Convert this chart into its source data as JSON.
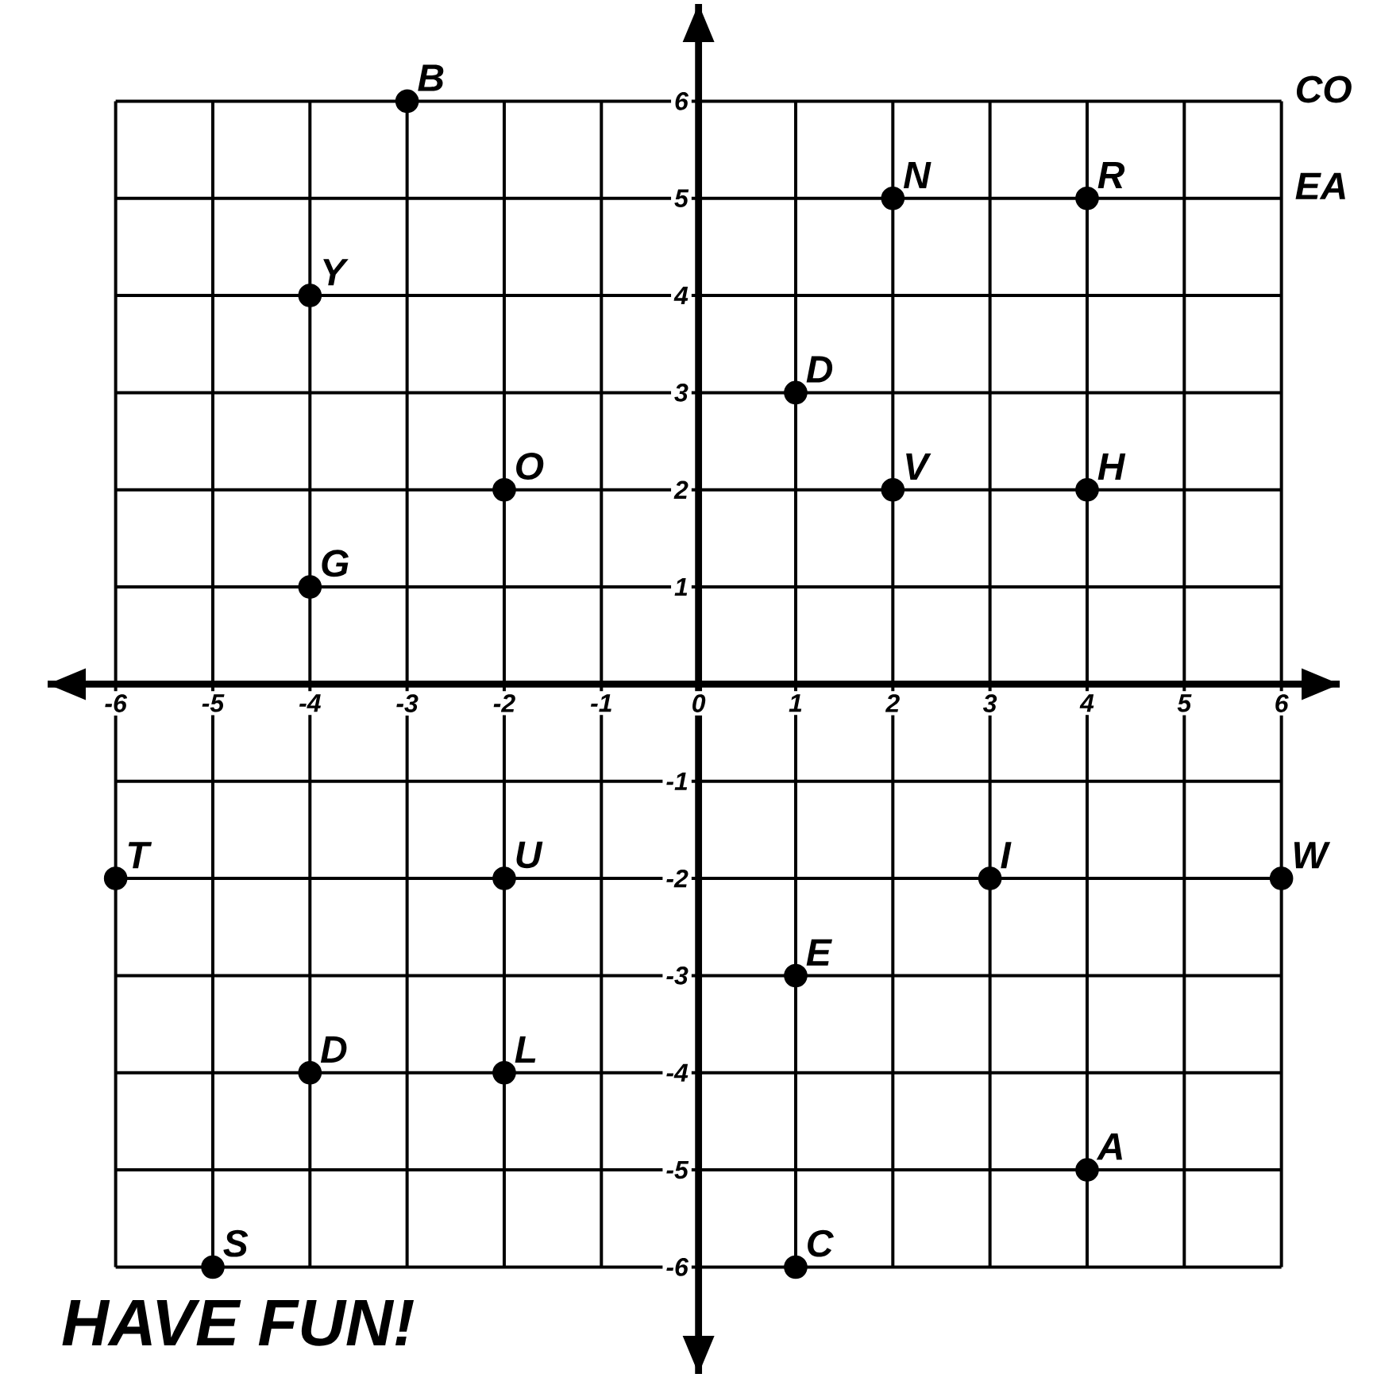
{
  "chart_data": {
    "type": "scatter",
    "series": [
      {
        "color": "#000000",
        "x": [
          -3,
          2,
          4,
          -4,
          1,
          -2,
          2,
          4,
          -4,
          -6,
          -2,
          3,
          6,
          1,
          -4,
          -2,
          4,
          -5,
          1
        ],
        "values": [
          6,
          5,
          5,
          4,
          3,
          2,
          2,
          2,
          1,
          -2,
          -2,
          -2,
          -2,
          -3,
          -4,
          -4,
          -5,
          -6,
          -6
        ]
      }
    ],
    "marker": "circle",
    "grid": true,
    "xlim": [
      -6.7,
      6.6
    ],
    "ylim": [
      -7.1,
      7
    ],
    "xticks": [
      -6,
      -5,
      -4,
      -3,
      -2,
      -1,
      0,
      1,
      2,
      3,
      4,
      5,
      6
    ],
    "yticks": [
      -6,
      -5,
      -4,
      -3,
      -2,
      -1,
      1,
      2,
      3,
      4,
      5,
      6
    ],
    "annotations": [
      {
        "text": "B",
        "x": -3,
        "y": 6
      },
      {
        "text": "N",
        "x": 2,
        "y": 5
      },
      {
        "text": "R",
        "x": 4,
        "y": 5
      },
      {
        "text": "Y",
        "x": -4,
        "y": 4
      },
      {
        "text": "D",
        "x": 1,
        "y": 3
      },
      {
        "text": "O",
        "x": -2,
        "y": 2
      },
      {
        "text": "V",
        "x": 2,
        "y": 2
      },
      {
        "text": "H",
        "x": 4,
        "y": 2
      },
      {
        "text": "G",
        "x": -4,
        "y": 1
      },
      {
        "text": "T",
        "x": -6,
        "y": -2
      },
      {
        "text": "U",
        "x": -2,
        "y": -2
      },
      {
        "text": "I",
        "x": 3,
        "y": -2
      },
      {
        "text": "W",
        "x": 6,
        "y": -2
      },
      {
        "text": "E",
        "x": 1,
        "y": -3
      },
      {
        "text": "D",
        "x": -4,
        "y": -4
      },
      {
        "text": "L",
        "x": -2,
        "y": -4
      },
      {
        "text": "A",
        "x": 4,
        "y": -5
      },
      {
        "text": "S",
        "x": -5,
        "y": -6
      },
      {
        "text": "C",
        "x": 1,
        "y": -6
      },
      "CO",
      "EA",
      "HAVE FUN!"
    ]
  }
}
